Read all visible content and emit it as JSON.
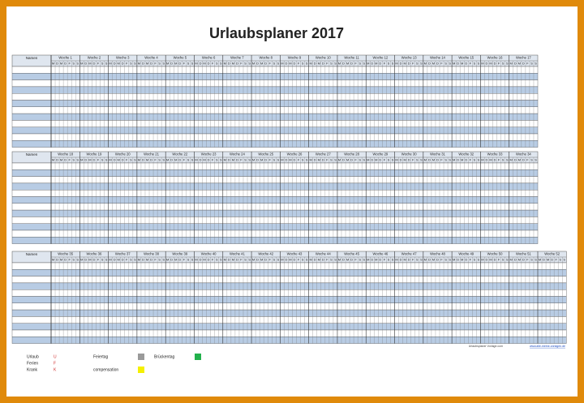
{
  "title": "Urlaubsplaner 2017",
  "name_header": "Namen",
  "day_letters": [
    "M",
    "D",
    "M",
    "D",
    "F",
    "S",
    "S"
  ],
  "blocks": [
    {
      "weeks": [
        "Woche 1",
        "Woche 2",
        "Woche 3",
        "Woche 4",
        "Woche 5",
        "Woche 6",
        "Woche 7",
        "Woche 8",
        "Woche 9",
        "Woche 10",
        "Woche 11",
        "Woche 12",
        "Woche 13",
        "Woche 14",
        "Woche 15",
        "Woche 16",
        "Woche 17"
      ]
    },
    {
      "weeks": [
        "Woche 18",
        "Woche 19",
        "Woche 20",
        "Woche 21",
        "Woche 22",
        "Woche 23",
        "Woche 24",
        "Woche 25",
        "Woche 26",
        "Woche 27",
        "Woche 28",
        "Woche 29",
        "Woche 30",
        "Woche 31",
        "Woche 32",
        "Woche 33",
        "Woche 34"
      ]
    },
    {
      "weeks": [
        "Woche 35",
        "Woche 36",
        "Woche 37",
        "Woche 38",
        "Woche 39",
        "Woche 40",
        "Woche 41",
        "Woche 42",
        "Woche 43",
        "Woche 44",
        "Woche 45",
        "Woche 46",
        "Woche 47",
        "Woche 48",
        "Woche 49",
        "Woche 50",
        "Woche 51",
        "Woche 52"
      ]
    }
  ],
  "legend": {
    "codes": [
      {
        "label": "Urlaub",
        "code": "U"
      },
      {
        "label": "Ferien",
        "code": "F"
      },
      {
        "label": "Krank",
        "code": "K"
      }
    ],
    "colors": [
      {
        "label": "Feiertag",
        "color": "#9a9a9a"
      },
      {
        "label": "Brückentag",
        "color": "#22b14c"
      },
      {
        "label": "compensation",
        "color": "#f5f000"
      }
    ]
  },
  "footer": {
    "left": "Urlaubsplaner Vorlage.com",
    "right": "www.alle-meine-vorlagen.de"
  }
}
